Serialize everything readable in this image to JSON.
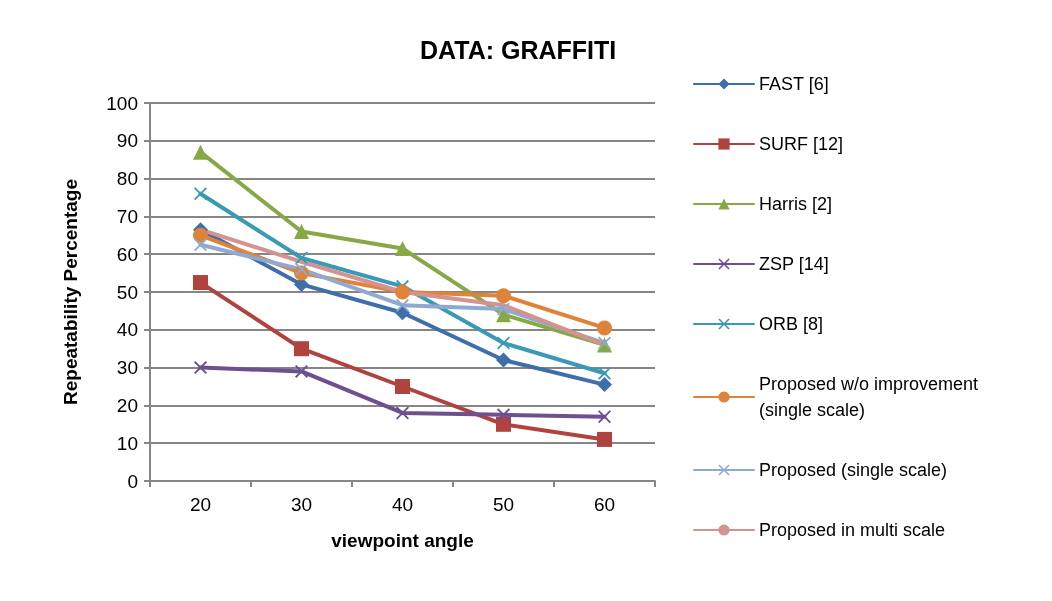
{
  "chart_data": {
    "type": "line",
    "title": "DATA: GRAFFITI",
    "xlabel": "viewpoint angle",
    "ylabel": "Repeatability Percentage",
    "categories": [
      "20",
      "30",
      "40",
      "50",
      "60"
    ],
    "ylim": [
      0,
      100
    ],
    "yticks": [
      0,
      10,
      20,
      30,
      40,
      50,
      60,
      70,
      80,
      90,
      100
    ],
    "grid": "y",
    "legend": "right",
    "line_style": "solid",
    "series": [
      {
        "name": "FAST [6]",
        "color": "#3f6faa",
        "marker": "diamond",
        "values": [
          66.5,
          52,
          44.5,
          32,
          25.5
        ]
      },
      {
        "name": "SURF [12]",
        "color": "#b0433f",
        "marker": "square",
        "values": [
          52.5,
          35,
          25,
          15,
          11
        ]
      },
      {
        "name": "Harris [2]",
        "color": "#86a845",
        "marker": "triangle",
        "values": [
          87,
          66,
          61.5,
          44,
          36
        ]
      },
      {
        "name": "ZSP [14]",
        "color": "#6d508f",
        "marker": "cross",
        "values": [
          30,
          29,
          18,
          17.5,
          17
        ]
      },
      {
        "name": "ORB [8]",
        "color": "#3a9ab4",
        "marker": "cross",
        "values": [
          76,
          59,
          51.5,
          36.5,
          28.5
        ]
      },
      {
        "name": "Proposed w/o improvement (single scale)",
        "color": "#e0833a",
        "marker": "circle",
        "values": [
          65,
          55,
          50,
          49,
          40.5
        ]
      },
      {
        "name": "Proposed (single scale)",
        "color": "#8eaad3",
        "marker": "cross",
        "values": [
          62.5,
          56,
          46.5,
          45.5,
          36.5
        ]
      },
      {
        "name": "Proposed in multi scale",
        "color": "#d49291",
        "marker": "none",
        "values": [
          66.5,
          58,
          50,
          46.5,
          36
        ]
      }
    ]
  }
}
